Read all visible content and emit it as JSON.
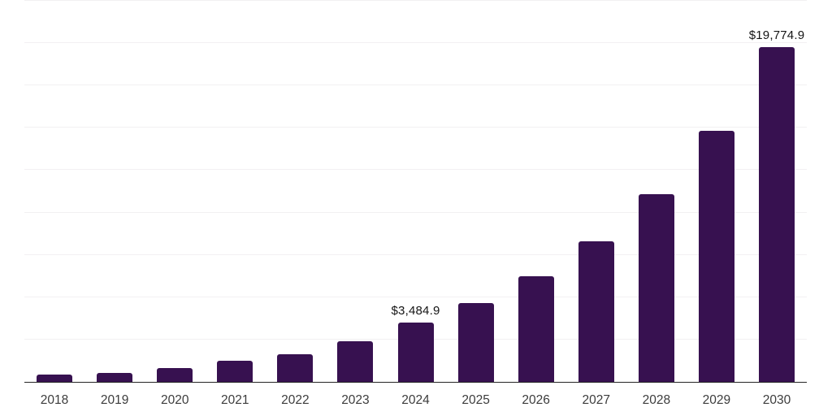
{
  "chart_data": {
    "type": "bar",
    "title": "",
    "xlabel": "",
    "ylabel": "",
    "categories": [
      "2018",
      "2019",
      "2020",
      "2021",
      "2022",
      "2023",
      "2024",
      "2025",
      "2026",
      "2027",
      "2028",
      "2029",
      "2030"
    ],
    "values": [
      450,
      550,
      840,
      1250,
      1630,
      2400,
      3484.9,
      4654.2,
      6215.9,
      8301.5,
      11087.0,
      14806.9,
      19774.9
    ],
    "point_labels": [
      "",
      "",
      "",
      "",
      "",
      "",
      "$3,484.9",
      "",
      "",
      "",
      "",
      "",
      "$19,774.9"
    ],
    "ylim": [
      0,
      22500
    ],
    "gridline_step": 2500,
    "grid": true,
    "legend": "none",
    "colors": {
      "bar": "#371150",
      "gridline": "#f2f0f2",
      "axis_line": "#262626",
      "tick_label": "#3c3c3c",
      "value_label": "#141414",
      "background": "#ffffff"
    }
  }
}
